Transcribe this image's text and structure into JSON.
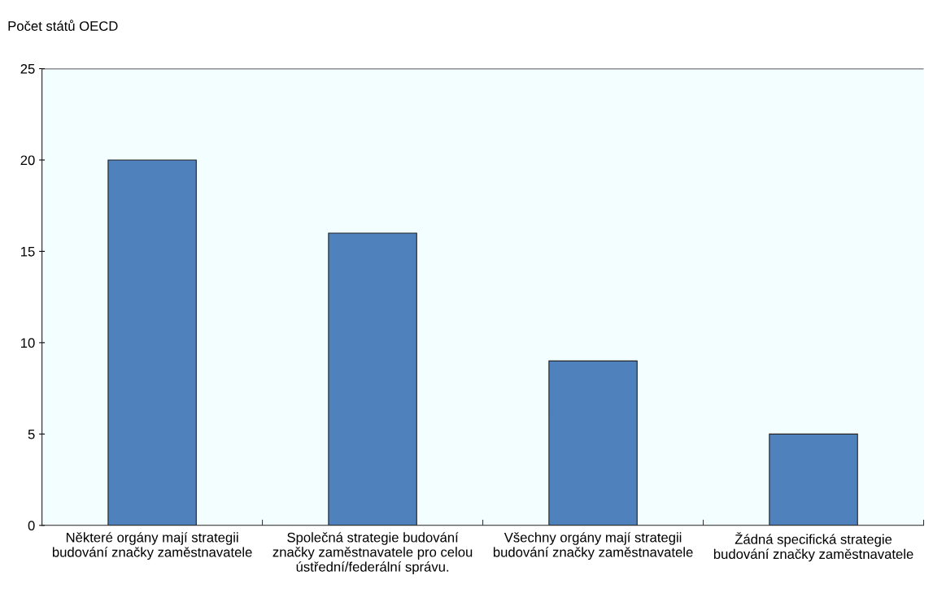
{
  "chart_data": {
    "type": "bar",
    "ylabel": "Počet států OECD",
    "categories": [
      "Některé orgány mají strategii\nbudování značky zaměstnavatele",
      "Společná strategie budování\nznačky zaměstnavatele pro celou\nústřední/federální správu.",
      "Všechny orgány mají strategii\nbudování značky zaměstnavatele",
      "Žádná specifická strategie\nbudování značky zaměstnavatele"
    ],
    "values": [
      20,
      16,
      9,
      5
    ],
    "color": "#4f81bd",
    "ylim": [
      0,
      25
    ],
    "yticks": [
      0,
      5,
      10,
      15,
      20,
      25
    ],
    "grid": false
  }
}
